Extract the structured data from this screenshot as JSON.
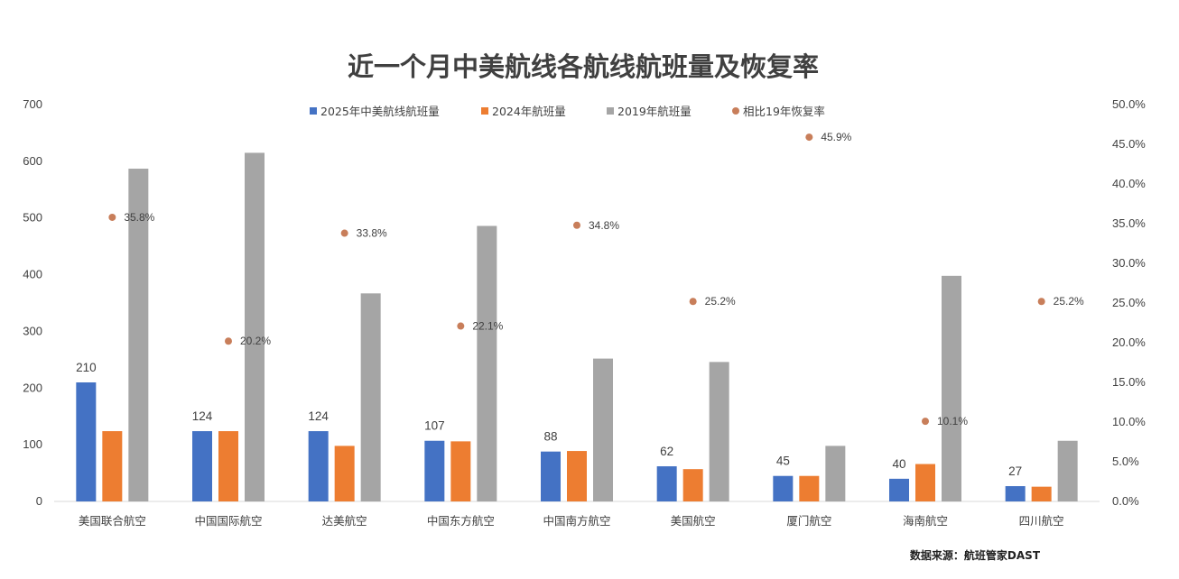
{
  "chart_data": {
    "type": "bar",
    "title": "近一个月中美航线各航线航班量及恢复率",
    "source": "数据来源：航班管家DAST",
    "categories": [
      "美国联合航空",
      "中国国际航空",
      "达美航空",
      "中国东方航空",
      "中国南方航空",
      "美国航空",
      "厦门航空",
      "海南航空",
      "四川航空"
    ],
    "series": [
      {
        "name": "2025年中美航线航班量",
        "kind": "bar",
        "axis": "left",
        "color": "#4472c4",
        "show_labels": true,
        "values": [
          210,
          124,
          124,
          107,
          88,
          62,
          45,
          40,
          27
        ]
      },
      {
        "name": "2024年航班量",
        "kind": "bar",
        "axis": "left",
        "color": "#ed7d31",
        "show_labels": false,
        "values": [
          124,
          124,
          98,
          106,
          89,
          57,
          45,
          66,
          26
        ]
      },
      {
        "name": "2019年航班量",
        "kind": "bar",
        "axis": "left",
        "color": "#a5a5a5",
        "show_labels": false,
        "values": [
          587,
          615,
          367,
          486,
          252,
          246,
          98,
          398,
          107
        ]
      },
      {
        "name": "相比19年恢复率",
        "kind": "scatter",
        "axis": "right",
        "color": "#c87e5a",
        "show_labels": true,
        "values": [
          35.8,
          20.2,
          33.8,
          22.1,
          34.8,
          25.2,
          45.9,
          10.1,
          25.2
        ],
        "labels": [
          "35.8%",
          "20.2%",
          "33.8%",
          "22.1%",
          "34.8%",
          "25.2%",
          "45.9%",
          "10.1%",
          "25.2%"
        ]
      }
    ],
    "y_left": {
      "min": 0,
      "max": 700,
      "ticks": [
        "0",
        "100",
        "200",
        "300",
        "400",
        "500",
        "600",
        "700"
      ]
    },
    "y_right": {
      "min": 0,
      "max": 50,
      "ticks": [
        "0.0%",
        "5.0%",
        "10.0%",
        "15.0%",
        "20.0%",
        "25.0%",
        "30.0%",
        "35.0%",
        "40.0%",
        "45.0%",
        "50.0%"
      ]
    },
    "grid": false,
    "legend_position": "top"
  }
}
